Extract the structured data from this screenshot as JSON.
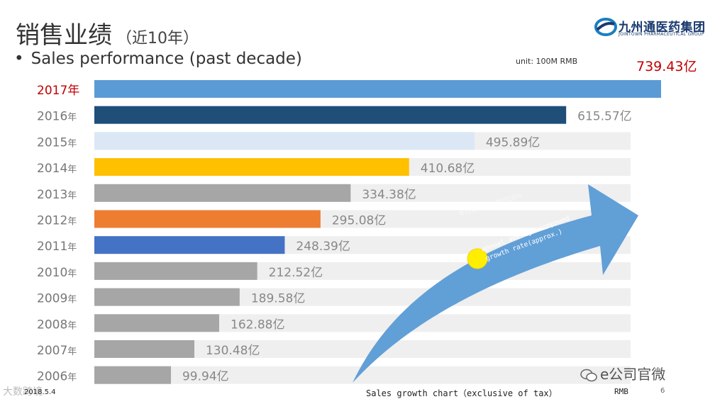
{
  "header": {
    "title": "销售业绩",
    "title_suffix": "（近10年）",
    "subtitle": "Sales performance (past decade)",
    "bullet": "•",
    "unit": "unit: 100M RMB"
  },
  "logo": {
    "name_cn": "九州通医药集团",
    "name_en": "JOINTOWN PHARMACEUTICAL GROUP"
  },
  "chart_data": {
    "type": "bar",
    "orientation": "horizontal",
    "categories": [
      "2017年",
      "2016年",
      "2015年",
      "2014年",
      "2013年",
      "2012年",
      "2011年",
      "2010年",
      "2009年",
      "2008年",
      "2007年",
      "2006年"
    ],
    "values": [
      739.43,
      615.57,
      495.89,
      410.68,
      334.38,
      295.08,
      248.39,
      212.52,
      189.58,
      162.88,
      130.48,
      99.94
    ],
    "value_labels": [
      "739.43亿",
      "615.57亿",
      "495.89亿",
      "410.68亿",
      "334.38亿",
      "295.08亿",
      "248.39亿",
      "212.52亿",
      "189.58亿",
      "162.88亿",
      "130.48亿",
      "99.94亿"
    ],
    "bar_colors": [
      "#5b9bd5",
      "#1f4e79",
      "#dbe7f5",
      "#ffc000",
      "#a6a6a6",
      "#ed7d31",
      "#4472c4",
      "#a6a6a6",
      "#a6a6a6",
      "#a6a6a6",
      "#a6a6a6",
      "#a6a6a6"
    ],
    "highlight_color": "#c00000",
    "track_color": "#efefef",
    "unit": "100M RMB",
    "annotation": "annual average compound growth rate(approx.)",
    "annotation_faint": "年均复合增长率约20%",
    "arrow_color": "#5b9bd5",
    "marker_color": "#ffee00",
    "xlim": [
      0,
      739.43
    ]
  },
  "footer": {
    "watermark": "大数跨境",
    "date": "2018.5.4",
    "caption": "Sales growth chart（exclusive of tax）",
    "rmb": "RMB",
    "page": "6",
    "wechat": "e公司官微"
  }
}
